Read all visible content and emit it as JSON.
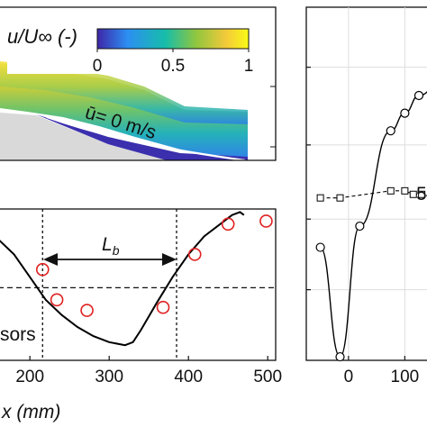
{
  "colorbar": {
    "title": "u/U∞ (-)",
    "ticks": [
      "0",
      "0.5",
      "1"
    ],
    "colors": [
      "#3e26a8",
      "#2c8ff2",
      "#17bdaa",
      "#8ec63f",
      "#f3c93a",
      "#f9fb15"
    ]
  },
  "flow_panel": {
    "annotation": "ū= 0 m/s"
  },
  "chart_data": [
    {
      "type": "line",
      "panel": "bottom-left",
      "xlabel": "x (mm)",
      "ylabel": "",
      "xlim": [
        160,
        510
      ],
      "ylim": [
        0,
        1
      ],
      "x_ticks": [
        200,
        300,
        400,
        500
      ],
      "x_tick_labels": [
        "200",
        "300",
        "400",
        "500"
      ],
      "grid": false,
      "series": [
        {
          "marker": "line",
          "color": "#000000",
          "x": [
            160,
            180,
            200,
            220,
            240,
            260,
            280,
            300,
            320,
            330,
            340,
            360,
            380,
            400,
            420,
            440,
            455,
            465,
            470
          ],
          "y": [
            0.8,
            0.7,
            0.55,
            0.4,
            0.3,
            0.22,
            0.16,
            0.12,
            0.1,
            0.12,
            0.2,
            0.38,
            0.55,
            0.7,
            0.82,
            0.9,
            0.96,
            0.98,
            0.96
          ]
        },
        {
          "marker": "circle",
          "color": "#e02020",
          "x": [
            216,
            234,
            272,
            368,
            408,
            450,
            498
          ],
          "y": [
            0.6,
            0.4,
            0.33,
            0.35,
            0.7,
            0.9,
            0.92
          ]
        }
      ],
      "reference_line_y": 0.48,
      "vertical_lines_x": [
        216,
        385
      ],
      "annotation": "L",
      "annotation_subscript": "b",
      "partial_label": "sors"
    },
    {
      "type": "line",
      "panel": "right",
      "xlabel": "",
      "ylabel": "",
      "xlim": [
        -75,
        165
      ],
      "ylim": [
        0,
        1
      ],
      "x_ticks": [
        0,
        100
      ],
      "x_tick_labels": [
        "0",
        "100"
      ],
      "grid": true,
      "series": [
        {
          "marker": "circle",
          "color": "#000000",
          "x": [
            -50,
            -15,
            20,
            75,
            100,
            125,
            160
          ],
          "y": [
            0.32,
            0.01,
            0.38,
            0.65,
            0.7,
            0.75,
            0.78
          ]
        },
        {
          "marker": "square-dashed",
          "color": "#000000",
          "x": [
            -50,
            -15,
            75,
            100,
            115,
            130,
            155
          ],
          "y": [
            0.46,
            0.46,
            0.48,
            0.48,
            0.47,
            0.47,
            0.46
          ]
        }
      ],
      "partial_label": "5"
    }
  ]
}
